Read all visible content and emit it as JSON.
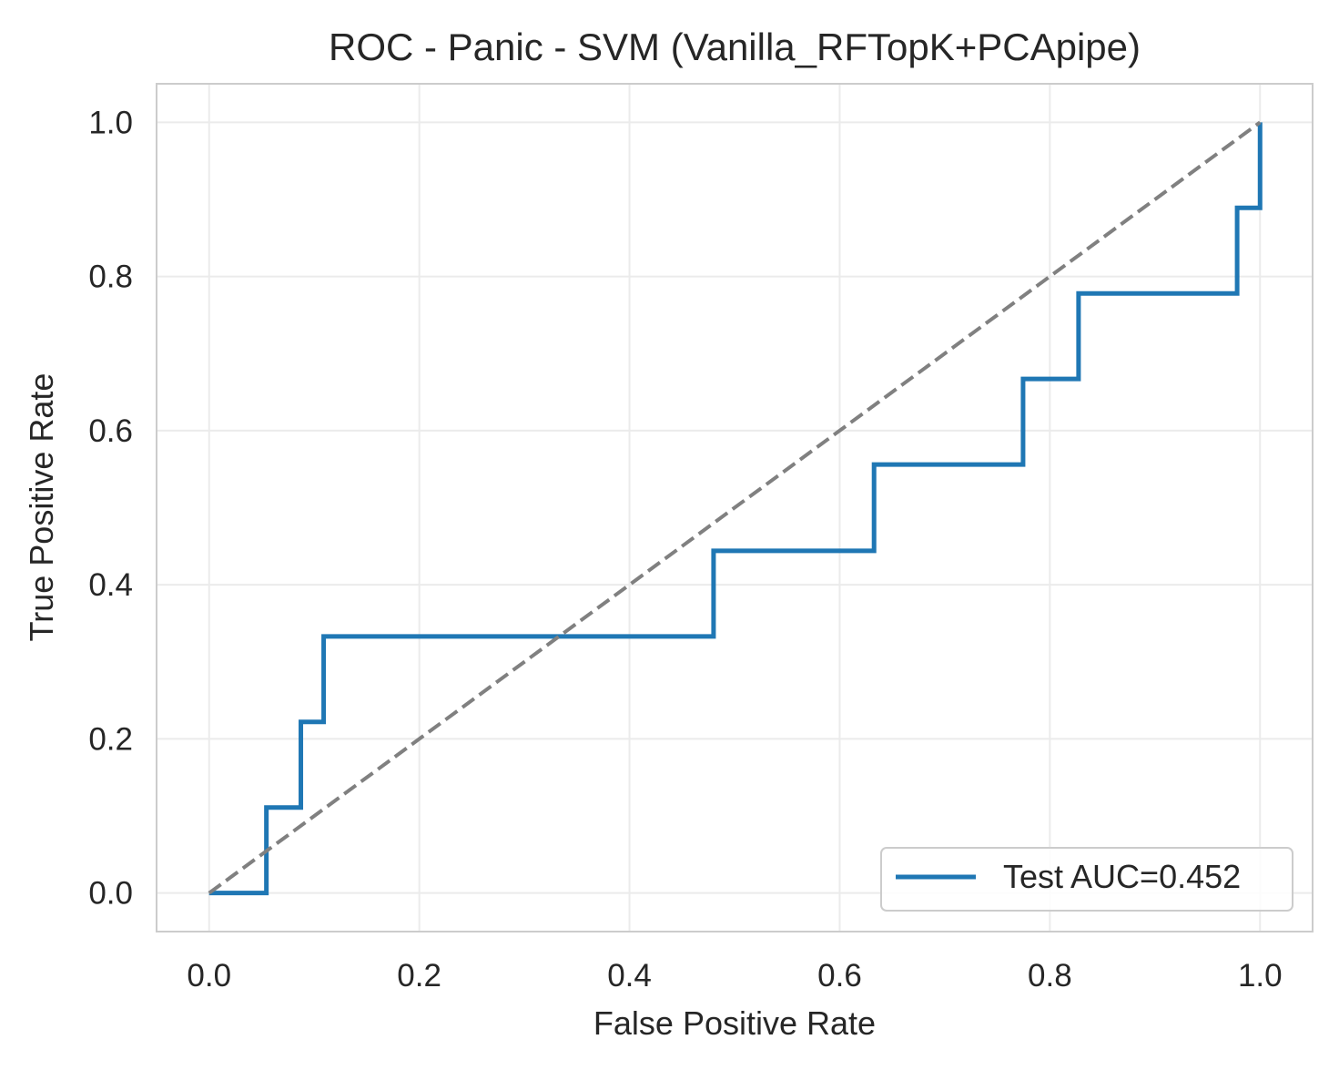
{
  "chart_data": {
    "type": "line",
    "title": "ROC - Panic - SVM (Vanilla_RFTopK+PCApipe)",
    "xlabel": "False Positive Rate",
    "ylabel": "True Positive Rate",
    "xlim": [
      -0.05,
      1.05
    ],
    "ylim": [
      -0.05,
      1.05
    ],
    "grid": true,
    "xticks": [
      "0.0",
      "0.2",
      "0.4",
      "0.6",
      "0.8",
      "1.0"
    ],
    "yticks": [
      "0.0",
      "0.2",
      "0.4",
      "0.6",
      "0.8",
      "1.0"
    ],
    "legend_position": "lower-right",
    "series": [
      {
        "name": "Test AUC=0.452",
        "color": "#1f77b4",
        "style": "solid",
        "x": [
          0.0,
          0.0545,
          0.0545,
          0.0873,
          0.0873,
          0.109,
          0.109,
          0.48,
          0.48,
          0.6327,
          0.6327,
          0.7745,
          0.7745,
          0.8273,
          0.8273,
          0.9782,
          0.9782,
          1.0,
          1.0
        ],
        "y": [
          0.0,
          0.0,
          0.111,
          0.111,
          0.222,
          0.222,
          0.333,
          0.333,
          0.444,
          0.444,
          0.556,
          0.556,
          0.667,
          0.667,
          0.778,
          0.778,
          0.889,
          0.889,
          1.0
        ]
      },
      {
        "color": "#808080",
        "style": "dashed",
        "x": [
          0.0,
          1.0
        ],
        "y": [
          0.0,
          1.0
        ]
      }
    ]
  }
}
